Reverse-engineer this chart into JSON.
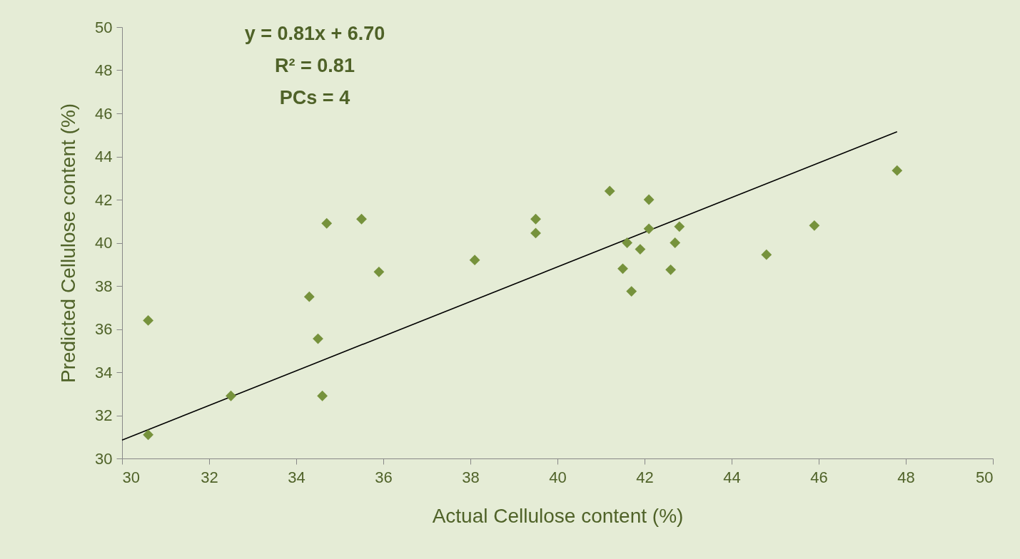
{
  "chart_data": {
    "type": "scatter",
    "xlabel": "Actual Cellulose content (%)",
    "ylabel": "Predicted Cellulose content (%)",
    "annotations": [
      "y = 0.81x + 6.70",
      "R² = 0.81",
      "PCs = 4"
    ],
    "xlim": [
      30,
      50
    ],
    "xticks": [
      30,
      32,
      34,
      36,
      38,
      40,
      42,
      44,
      46,
      48,
      50
    ],
    "ylim": [
      30,
      50
    ],
    "yticks": [
      30,
      32,
      34,
      36,
      38,
      40,
      42,
      44,
      46,
      48,
      50
    ],
    "grid": false,
    "series": [
      {
        "marker": "diamond",
        "color": "#76923c",
        "x": [
          30.6,
          30.6,
          32.5,
          34.3,
          34.5,
          34.6,
          34.7,
          35.5,
          35.9,
          38.1,
          39.5,
          39.5,
          41.2,
          42.1,
          42.1,
          41.6,
          41.5,
          41.9,
          41.7,
          42.7,
          42.8,
          42.6,
          44.8,
          45.9,
          47.8
        ],
        "values": [
          31.1,
          36.4,
          32.9,
          37.5,
          35.55,
          32.9,
          40.9,
          41.1,
          38.65,
          39.2,
          41.1,
          40.45,
          42.4,
          42.0,
          40.65,
          40.0,
          38.8,
          39.7,
          37.75,
          40.0,
          40.75,
          38.75,
          39.45,
          40.8,
          43.35
        ]
      },
      {
        "type": "line",
        "color": "#000000",
        "line_style": "solid",
        "x": [
          30,
          47.8
        ],
        "values": [
          30.85,
          45.15
        ]
      }
    ]
  }
}
